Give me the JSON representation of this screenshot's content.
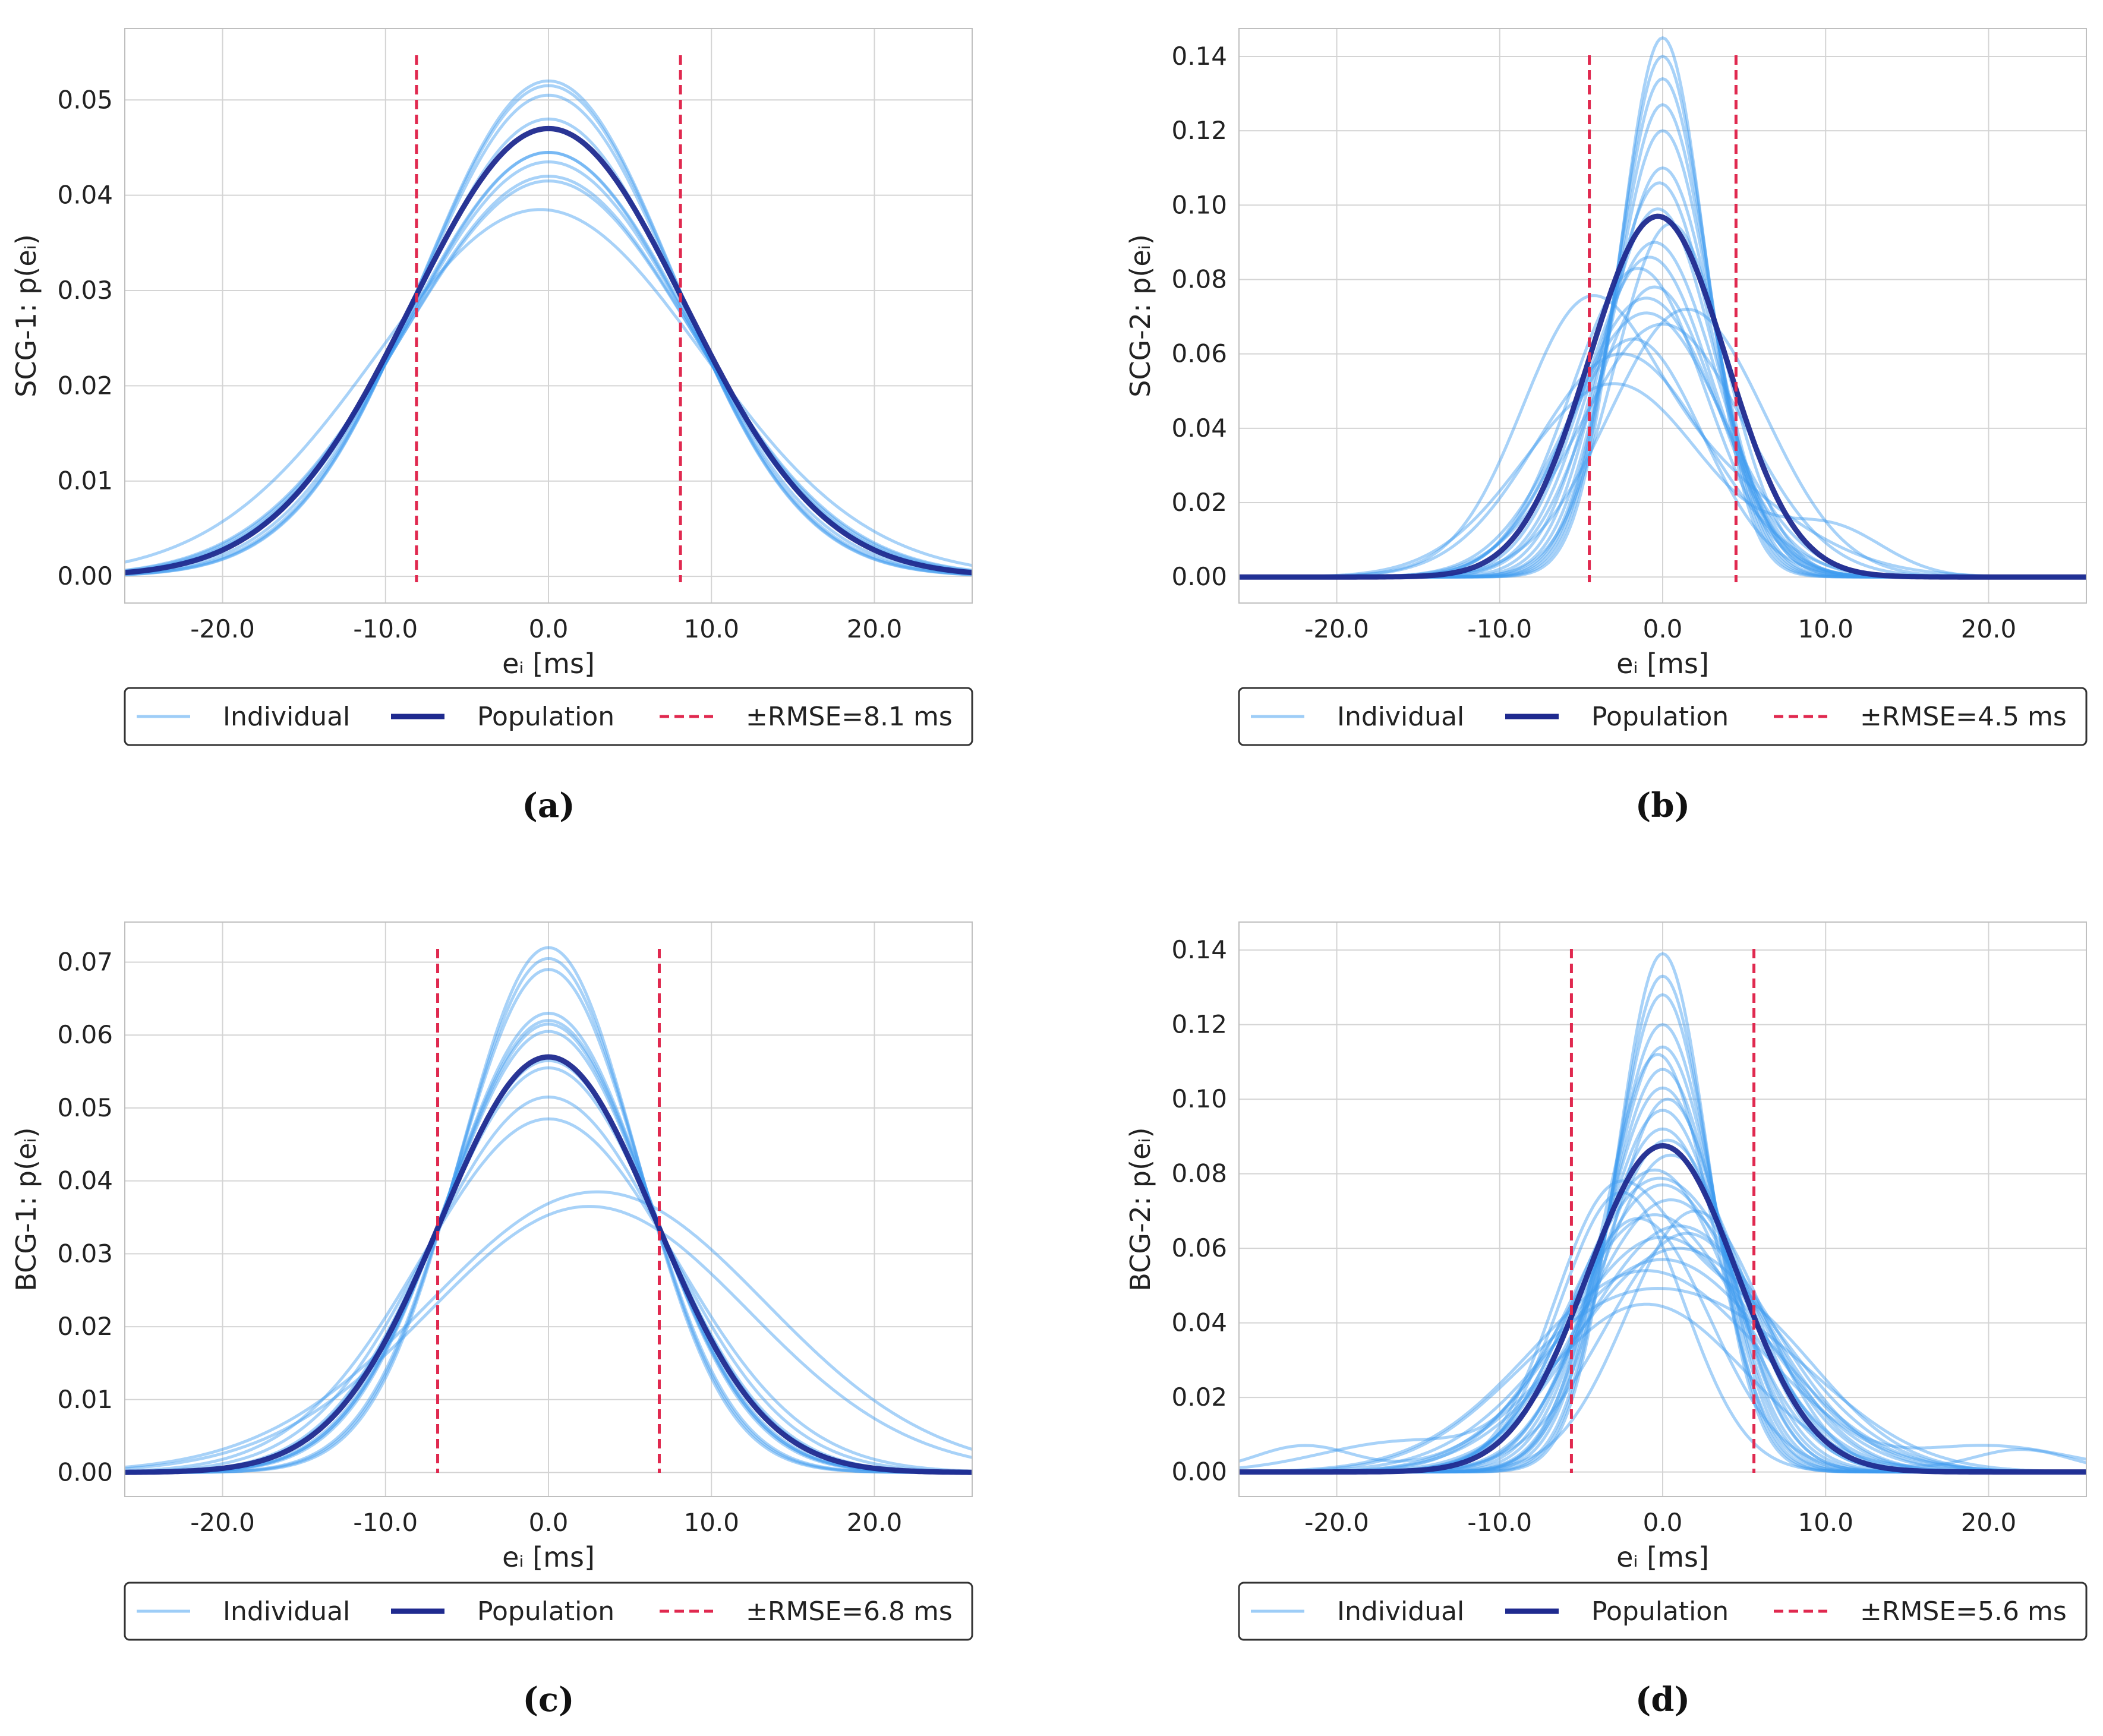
{
  "colors": {
    "individual": "#3d9bf0",
    "population": "#1f2a8f",
    "rmse": "#e0294f",
    "grid": "#d4d4d4",
    "frame": "#bfbfbf"
  },
  "chart_data": [
    {
      "id": "a",
      "type": "line",
      "caption": "(a)",
      "ylabel": "SCG-1: p(eᵢ)",
      "xlabel": "eᵢ [ms]",
      "xlim": [
        -26,
        26
      ],
      "ylim": [
        -0.0028,
        0.0575
      ],
      "xticks": [
        -20,
        -10,
        0,
        10,
        20
      ],
      "xtick_labels": [
        "-20.0",
        "-10.0",
        "0.0",
        "10.0",
        "20.0"
      ],
      "yticks": [
        0.0,
        0.01,
        0.02,
        0.03,
        0.04,
        0.05
      ],
      "ytick_labels": [
        "0.00",
        "0.01",
        "0.02",
        "0.03",
        "0.04",
        "0.05"
      ],
      "rmse": 8.1,
      "legend": [
        "Individual",
        "Population",
        "±RMSE=8.1 ms"
      ],
      "population": [
        [
          0,
          0.047,
          8.4
        ]
      ],
      "individuals": [
        [
          [
            0,
            0.052,
            7.7
          ]
        ],
        [
          [
            0,
            0.0515,
            7.75
          ]
        ],
        [
          [
            0,
            0.0505,
            7.85
          ]
        ],
        [
          [
            0,
            0.048,
            8.1
          ]
        ],
        [
          [
            0,
            0.0445,
            8.5
          ]
        ],
        [
          [
            0,
            0.0435,
            8.7
          ]
        ],
        [
          [
            0,
            0.042,
            8.9
          ]
        ],
        [
          [
            0,
            0.0415,
            9.0
          ]
        ],
        [
          [
            -0.5,
            0.0385,
            10.0
          ]
        ],
        [
          [
            0,
            0.0445,
            8.6
          ]
        ]
      ]
    },
    {
      "id": "b",
      "type": "line",
      "caption": "(b)",
      "ylabel": "SCG-2: p(eᵢ)",
      "xlabel": "eᵢ [ms]",
      "xlim": [
        -26,
        26
      ],
      "ylim": [
        -0.007,
        0.1475
      ],
      "xticks": [
        -20,
        -10,
        0,
        10,
        20
      ],
      "xtick_labels": [
        "-20.0",
        "-10.0",
        "0.0",
        "10.0",
        "20.0"
      ],
      "yticks": [
        0.0,
        0.02,
        0.04,
        0.06,
        0.08,
        0.1,
        0.12,
        0.14
      ],
      "ytick_labels": [
        "0.00",
        "0.02",
        "0.04",
        "0.06",
        "0.08",
        "0.10",
        "0.12",
        "0.14"
      ],
      "rmse": 4.5,
      "legend": [
        "Individual",
        "Population",
        "±RMSE=4.5 ms"
      ],
      "population": [
        [
          -0.3,
          0.097,
          4.2
        ]
      ],
      "individuals": [
        [
          [
            0,
            0.145,
            2.6
          ]
        ],
        [
          [
            0,
            0.14,
            2.7
          ]
        ],
        [
          [
            0,
            0.134,
            2.8
          ]
        ],
        [
          [
            0,
            0.127,
            2.9
          ]
        ],
        [
          [
            0,
            0.12,
            3.0
          ]
        ],
        [
          [
            0,
            0.11,
            3.2
          ]
        ],
        [
          [
            -0.2,
            0.106,
            3.3
          ]
        ],
        [
          [
            -0.3,
            0.099,
            3.5
          ]
        ],
        [
          [
            -0.5,
            0.09,
            3.8
          ]
        ],
        [
          [
            -1.5,
            0.083,
            4.1
          ]
        ],
        [
          [
            -1,
            0.075,
            4.4
          ]
        ],
        [
          [
            -1,
            0.071,
            4.7
          ]
        ],
        [
          [
            0,
            0.068,
            5.0
          ]
        ],
        [
          [
            1.5,
            0.072,
            4.8
          ]
        ],
        [
          [
            -5,
            0.05,
            3.8
          ],
          [
            0,
            0.033,
            6.5
          ]
        ],
        [
          [
            -3,
            0.052,
            5.5
          ],
          [
            10.5,
            0.012,
            3.2
          ]
        ],
        [
          [
            -2.5,
            0.06,
            5.2
          ]
        ],
        [
          [
            -1.8,
            0.064,
            4.2
          ]
        ],
        [
          [
            -0.5,
            0.078,
            3.8
          ]
        ],
        [
          [
            0.5,
            0.095,
            3.4
          ]
        ],
        [
          [
            -0.8,
            0.086,
            3.9
          ]
        ]
      ]
    },
    {
      "id": "c",
      "type": "line",
      "caption": "(c)",
      "ylabel": "BCG-1: p(eᵢ)",
      "xlabel": "eᵢ [ms]",
      "xlim": [
        -26,
        26
      ],
      "ylim": [
        -0.0033,
        0.0755
      ],
      "xticks": [
        -20,
        -10,
        0,
        10,
        20
      ],
      "xtick_labels": [
        "-20.0",
        "-10.0",
        "0.0",
        "10.0",
        "20.0"
      ],
      "yticks": [
        0.0,
        0.01,
        0.02,
        0.03,
        0.04,
        0.05,
        0.06,
        0.07
      ],
      "ytick_labels": [
        "0.00",
        "0.01",
        "0.02",
        "0.03",
        "0.04",
        "0.05",
        "0.06",
        "0.07"
      ],
      "rmse": 6.8,
      "legend": [
        "Individual",
        "Population",
        "±RMSE=6.8 ms"
      ],
      "population": [
        [
          0,
          0.057,
          6.6
        ]
      ],
      "individuals": [
        [
          [
            0,
            0.072,
            5.4
          ]
        ],
        [
          [
            0,
            0.0705,
            5.5
          ]
        ],
        [
          [
            0,
            0.069,
            5.6
          ]
        ],
        [
          [
            0,
            0.063,
            6.1
          ]
        ],
        [
          [
            0,
            0.0615,
            6.2
          ]
        ],
        [
          [
            0,
            0.0605,
            6.3
          ]
        ],
        [
          [
            0,
            0.0565,
            6.7
          ]
        ],
        [
          [
            0,
            0.0555,
            6.8
          ]
        ],
        [
          [
            0,
            0.0515,
            7.3
          ]
        ],
        [
          [
            0,
            0.0485,
            7.8
          ]
        ],
        [
          [
            0,
            0.062,
            6.2
          ]
        ],
        [
          [
            2.5,
            0.0365,
            9.8
          ]
        ],
        [
          [
            3,
            0.0385,
            10.3
          ]
        ]
      ]
    },
    {
      "id": "d",
      "type": "line",
      "caption": "(d)",
      "ylabel": "BCG-2: p(eᵢ)",
      "xlabel": "eᵢ [ms]",
      "xlim": [
        -26,
        26
      ],
      "ylim": [
        -0.0066,
        0.1475
      ],
      "xticks": [
        -20,
        -10,
        0,
        10,
        20
      ],
      "xtick_labels": [
        "-20.0",
        "-10.0",
        "0.0",
        "10.0",
        "20.0"
      ],
      "yticks": [
        0.0,
        0.02,
        0.04,
        0.06,
        0.08,
        0.1,
        0.12,
        0.14
      ],
      "ytick_labels": [
        "0.00",
        "0.02",
        "0.04",
        "0.06",
        "0.08",
        "0.10",
        "0.12",
        "0.14"
      ],
      "rmse": 5.6,
      "legend": [
        "Individual",
        "Population",
        "±RMSE=5.6 ms"
      ],
      "population": [
        [
          0,
          0.0875,
          4.6
        ]
      ],
      "individuals": [
        [
          [
            0,
            0.139,
            2.8
          ]
        ],
        [
          [
            0,
            0.133,
            2.9
          ]
        ],
        [
          [
            0,
            0.128,
            3.0
          ]
        ],
        [
          [
            0,
            0.12,
            3.2
          ]
        ],
        [
          [
            0,
            0.114,
            3.35
          ]
        ],
        [
          [
            0,
            0.108,
            3.5
          ]
        ],
        [
          [
            0,
            0.103,
            3.7
          ]
        ],
        [
          [
            0,
            0.097,
            3.9
          ]
        ],
        [
          [
            0,
            0.092,
            4.1
          ]
        ],
        [
          [
            0.3,
            0.089,
            4.3
          ]
        ],
        [
          [
            0.5,
            0.085,
            4.5
          ]
        ],
        [
          [
            -0.5,
            0.081,
            4.7
          ]
        ],
        [
          [
            0,
            0.077,
            5.0
          ]
        ],
        [
          [
            0.5,
            0.073,
            5.2
          ]
        ],
        [
          [
            -0.5,
            0.069,
            5.5
          ]
        ],
        [
          [
            1,
            0.066,
            5.7
          ]
        ],
        [
          [
            0,
            0.063,
            6.0
          ]
        ],
        [
          [
            1,
            0.06,
            6.3
          ]
        ],
        [
          [
            0,
            0.057,
            6.6
          ]
        ],
        [
          [
            -1,
            0.054,
            7.0
          ]
        ],
        [
          [
            -3.5,
            0.058,
            3.5
          ],
          [
            4,
            0.045,
            5.5
          ]
        ],
        [
          [
            -4,
            0.035,
            6.0
          ],
          [
            5,
            0.03,
            6.0
          ]
        ],
        [
          [
            -2,
            0.05,
            4.5
          ],
          [
            3,
            0.04,
            5.0
          ],
          [
            -16,
            0.008,
            5.0
          ],
          [
            20,
            0.007,
            5.0
          ]
        ],
        [
          [
            -1,
            0.045,
            6.0
          ],
          [
            -22,
            0.007,
            3.0
          ],
          [
            22,
            0.006,
            3.0
          ]
        ],
        [
          [
            -2.5,
            0.075,
            3.8
          ]
        ],
        [
          [
            2,
            0.07,
            4.2
          ]
        ],
        [
          [
            1.5,
            0.064,
            5.0
          ]
        ],
        [
          [
            -1.5,
            0.068,
            4.4
          ]
        ],
        [
          [
            0.3,
            0.1,
            3.6
          ]
        ],
        [
          [
            -0.3,
            0.112,
            3.3
          ]
        ]
      ]
    }
  ]
}
